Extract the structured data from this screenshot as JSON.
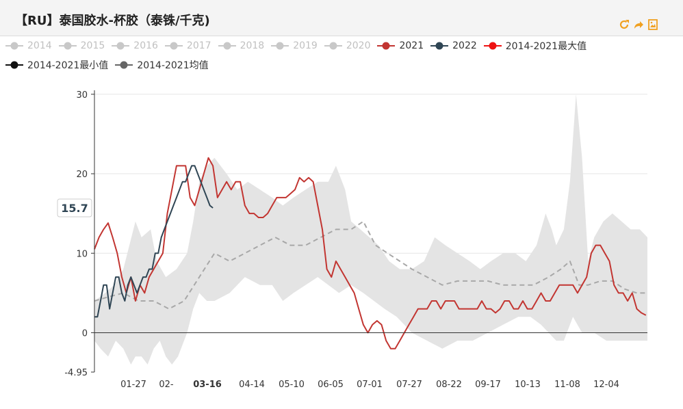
{
  "header": {
    "title": "【RU】泰国胶水-杯胶（泰铢/千克)",
    "tools": [
      {
        "icon": "refresh-icon",
        "color": "#f0a020"
      },
      {
        "icon": "share-arrow-icon",
        "color": "#f0a020"
      },
      {
        "icon": "save-image-icon",
        "color": "#f0a020"
      }
    ]
  },
  "legend": [
    {
      "label": "2014",
      "active": false,
      "color": "#c8c8c8"
    },
    {
      "label": "2015",
      "active": false,
      "color": "#c8c8c8"
    },
    {
      "label": "2016",
      "active": false,
      "color": "#c8c8c8"
    },
    {
      "label": "2017",
      "active": false,
      "color": "#c8c8c8"
    },
    {
      "label": "2018",
      "active": false,
      "color": "#c8c8c8"
    },
    {
      "label": "2019",
      "active": false,
      "color": "#c8c8c8"
    },
    {
      "label": "2020",
      "active": false,
      "color": "#c8c8c8"
    },
    {
      "label": "2021",
      "active": true,
      "color": "#c23531"
    },
    {
      "label": "2022",
      "active": true,
      "color": "#2f4554"
    },
    {
      "label": "2014-2021最大值",
      "active": true,
      "color": "#ee1111"
    },
    {
      "label": "2014-2021最小值",
      "active": true,
      "color": "#111111"
    },
    {
      "label": "2014-2021均值",
      "active": true,
      "color": "#666666"
    }
  ],
  "tooltip": {
    "value_label": "15.7",
    "value": 15.7,
    "x_label": "03-16"
  },
  "chart_data": {
    "type": "line",
    "x_axis": {
      "categories": [
        "01-27",
        "02-",
        "03-16",
        "04-14",
        "05-10",
        "06-05",
        "07-01",
        "07-27",
        "08-22",
        "09-17",
        "10-13",
        "11-08",
        "12-04"
      ],
      "highlight": "03-16",
      "range_days": [
        1,
        365
      ]
    },
    "y_axis": {
      "ticks": [
        30,
        20,
        10,
        0,
        -4.95
      ],
      "min": -4.95,
      "max": 30.5
    },
    "band_color": "#e4e4e4",
    "mean_color": "#a8a8a8",
    "series": [
      {
        "name": "2014-2021最大值",
        "kind": "band-top",
        "x": [
          1,
          8,
          14,
          20,
          28,
          32,
          38,
          42,
          48,
          55,
          62,
          66,
          70,
          75,
          80,
          88,
          95,
          102,
          110,
          118,
          125,
          132,
          140,
          148,
          155,
          160,
          166,
          170,
          176,
          182,
          188,
          195,
          202,
          210,
          218,
          225,
          232,
          240,
          248,
          255,
          262,
          270,
          278,
          285,
          292,
          298,
          302,
          305,
          310,
          314,
          318,
          322,
          326,
          330,
          336,
          342,
          348,
          354,
          360,
          365
        ],
        "y": [
          4,
          5,
          6,
          8,
          14,
          12,
          13,
          9,
          7,
          8,
          10,
          14,
          19,
          21,
          22,
          20,
          18,
          19,
          18,
          17,
          16,
          17,
          18,
          19,
          19,
          21,
          18,
          14,
          13,
          12,
          11,
          9,
          8,
          8,
          9,
          12,
          11,
          10,
          9,
          8,
          9,
          10,
          10,
          9,
          11,
          15,
          13,
          11,
          13,
          19,
          30,
          22,
          9,
          12,
          14,
          15,
          14,
          13,
          13,
          12
        ]
      },
      {
        "name": "2014-2021最小值",
        "kind": "band-bottom",
        "x": [
          1,
          5,
          10,
          15,
          20,
          25,
          28,
          32,
          36,
          40,
          44,
          48,
          52,
          56,
          62,
          66,
          70,
          75,
          80,
          90,
          100,
          110,
          118,
          125,
          132,
          140,
          148,
          155,
          162,
          170,
          178,
          185,
          192,
          200,
          210,
          220,
          230,
          240,
          250,
          260,
          270,
          280,
          288,
          295,
          300,
          305,
          310,
          316,
          322,
          330,
          338,
          345,
          352,
          358,
          365
        ],
        "y": [
          -1,
          -2,
          -3,
          -1,
          -2,
          -4,
          -3,
          -3,
          -4,
          -2,
          -1,
          -3,
          -4,
          -3,
          0,
          3,
          5,
          4,
          4,
          5,
          7,
          6,
          6,
          4,
          5,
          6,
          7,
          6,
          5,
          6,
          5,
          4,
          3,
          2,
          0,
          -1,
          -2,
          -1,
          -1,
          0,
          1,
          2,
          2,
          1,
          0,
          -1,
          -1,
          2,
          0,
          0,
          -1,
          -1,
          -1,
          -1,
          -1
        ]
      },
      {
        "name": "2014-2021均值",
        "kind": "dashed",
        "x": [
          1,
          10,
          20,
          30,
          40,
          50,
          60,
          70,
          80,
          90,
          100,
          110,
          120,
          130,
          140,
          150,
          160,
          170,
          178,
          186,
          194,
          202,
          210,
          220,
          230,
          240,
          250,
          260,
          270,
          280,
          290,
          300,
          308,
          314,
          320,
          326,
          334,
          342,
          350,
          358,
          365
        ],
        "y": [
          4,
          4.5,
          5,
          4,
          4,
          3,
          4,
          7,
          10,
          9,
          10,
          11,
          12,
          11,
          11,
          12,
          13,
          13,
          14,
          11,
          10,
          9,
          8,
          7,
          6,
          6.5,
          6.5,
          6.5,
          6,
          6,
          6,
          7,
          8,
          9,
          6,
          6,
          6.5,
          6.5,
          5.5,
          5,
          5
        ]
      },
      {
        "name": "2021",
        "kind": "line",
        "color": "#c23531",
        "x": [
          1,
          4,
          7,
          10,
          13,
          16,
          19,
          22,
          25,
          28,
          31,
          34,
          37,
          40,
          43,
          46,
          49,
          52,
          55,
          58,
          61,
          64,
          67,
          70,
          73,
          76,
          79,
          82,
          85,
          88,
          91,
          94,
          97,
          100,
          103,
          106,
          109,
          112,
          115,
          118,
          121,
          124,
          127,
          130,
          133,
          136,
          139,
          142,
          145,
          148,
          151,
          154,
          157,
          160,
          163,
          166,
          169,
          172,
          175,
          178,
          181,
          184,
          187,
          190,
          193,
          196,
          199,
          202,
          205,
          208,
          211,
          214,
          217,
          220,
          223,
          226,
          229,
          232,
          235,
          238,
          241,
          244,
          247,
          250,
          253,
          256,
          259,
          262,
          265,
          268,
          271,
          274,
          277,
          280,
          283,
          286,
          289,
          292,
          295,
          298,
          301,
          304,
          307,
          310,
          313,
          316,
          319,
          322,
          325,
          328,
          331,
          334,
          337,
          340,
          343,
          346,
          349,
          352,
          355,
          358,
          361,
          364
        ],
        "y": [
          10.5,
          12,
          13,
          13.8,
          12,
          10,
          7,
          5,
          7,
          4,
          6,
          5,
          7,
          8,
          9,
          10,
          15,
          18,
          21,
          21,
          21,
          17,
          16,
          18,
          20,
          22,
          21,
          17,
          18,
          19,
          18,
          19,
          19,
          16,
          15,
          15,
          14.5,
          14.5,
          15,
          16,
          17,
          17,
          17,
          17.5,
          18,
          19.5,
          19,
          19.5,
          19,
          16,
          13,
          8,
          7,
          9,
          8,
          7,
          6,
          5,
          3,
          1,
          0,
          1,
          1.5,
          1,
          -1,
          -2,
          -2,
          -1,
          0,
          1,
          2,
          3,
          3,
          3,
          4,
          4,
          3,
          4,
          4,
          4,
          3,
          3,
          3,
          3,
          3,
          4,
          3,
          3,
          2.5,
          3,
          4,
          4,
          3,
          3,
          4,
          3,
          3,
          4,
          5,
          4,
          4,
          5,
          6,
          6,
          6,
          6,
          5,
          6,
          7,
          10,
          11,
          11,
          10,
          9,
          6,
          5,
          5,
          4,
          5,
          3,
          2.5,
          2.2
        ]
      },
      {
        "name": "2022",
        "kind": "line",
        "color": "#2f4554",
        "x": [
          1,
          3,
          5,
          7,
          9,
          11,
          13,
          15,
          17,
          19,
          21,
          23,
          25,
          27,
          29,
          31,
          33,
          35,
          37,
          39,
          41,
          43,
          45,
          47,
          49,
          51,
          53,
          55,
          57,
          59,
          61,
          63,
          65,
          67,
          69,
          71,
          73,
          75,
          77,
          79
        ],
        "y": [
          2,
          2,
          4,
          6,
          6,
          3,
          5,
          7,
          7,
          5,
          4,
          6,
          7,
          6,
          5,
          6,
          7,
          7,
          8,
          8,
          10,
          10,
          12,
          13,
          14,
          15,
          16,
          17,
          18,
          19,
          19,
          20,
          21,
          21,
          20,
          19,
          18,
          17,
          16,
          15.7
        ]
      }
    ]
  }
}
